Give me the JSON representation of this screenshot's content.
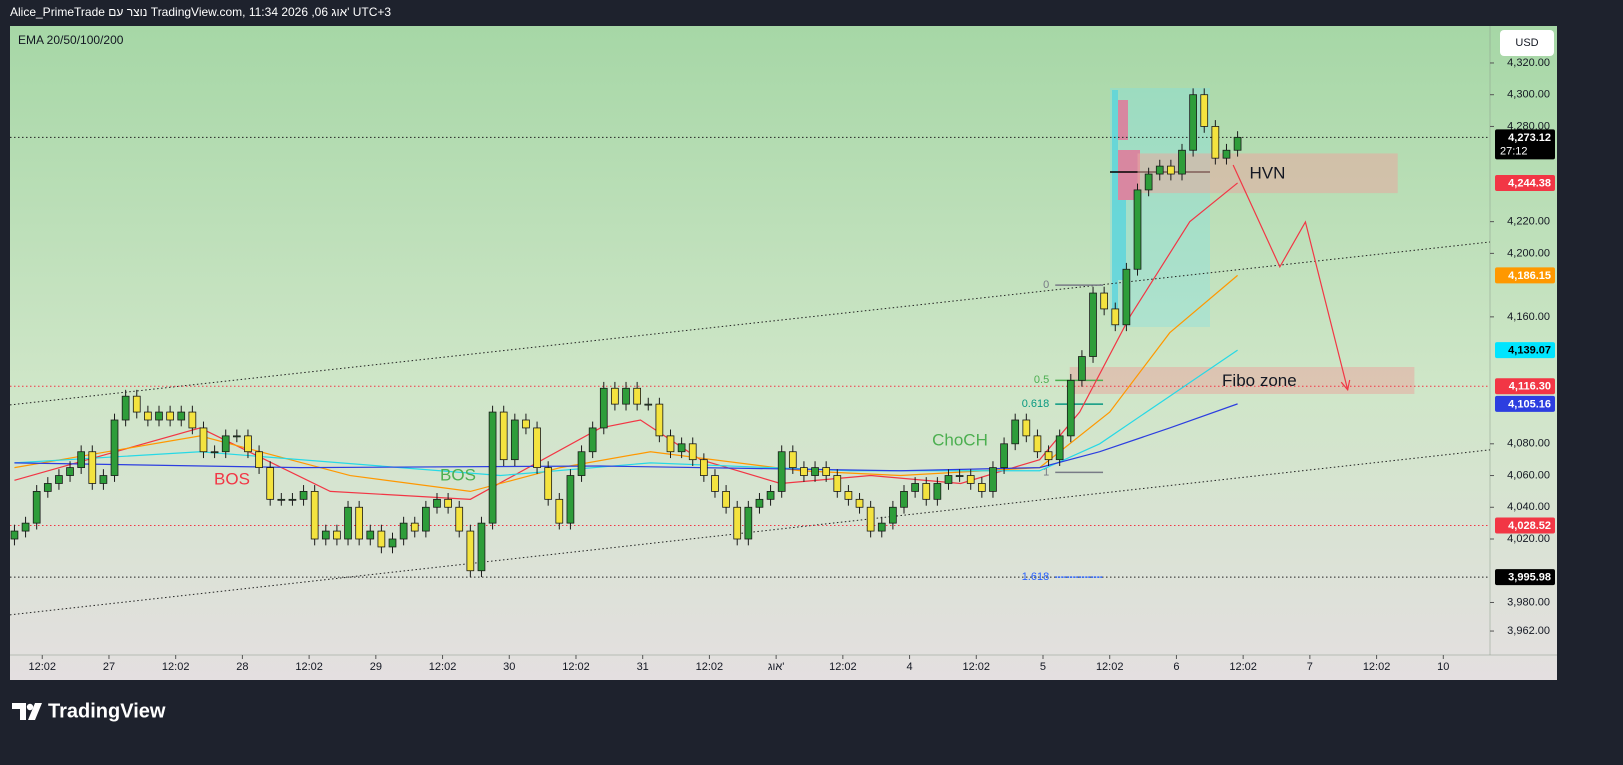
{
  "header": {
    "title": "Alice_PrimeTrade נוצר עם TradingView.com, 11:34 2026 ,06 אוג' UTC+3",
    "currency": "USD",
    "brand": "TradingView"
  },
  "chart_data": {
    "type": "candlestick",
    "indicator": "EMA 20/50/100/200",
    "open": [
      4020,
      4025,
      4030,
      4050,
      4055,
      4060,
      4065,
      4075,
      4055,
      4060,
      4095,
      4110,
      4100,
      4095,
      4100,
      4095,
      4100,
      4090,
      4075,
      4075,
      4085,
      4085,
      4075,
      4065,
      4045,
      4045,
      4045,
      4050,
      4020,
      4025,
      4020,
      4040,
      4020,
      4025,
      4015,
      4020,
      4030,
      4025,
      4040,
      4045,
      4040,
      4025,
      4000,
      4030,
      4100,
      4070,
      4095,
      4090,
      4065,
      4045,
      4030,
      4060,
      4075,
      4090,
      4115,
      4105,
      4115,
      4105,
      4105,
      4085,
      4075,
      4080,
      4070,
      4060,
      4050,
      4040,
      4020,
      4040,
      4045,
      4050,
      4075,
      4065,
      4060,
      4065,
      4060,
      4050,
      4045,
      4040,
      4025,
      4030,
      4040,
      4050,
      4055,
      4045,
      4055,
      4060,
      4060,
      4055,
      4050,
      4065,
      4080,
      4095,
      4085,
      4075,
      4070,
      4085,
      4120,
      4135,
      4175,
      4165,
      4155,
      4190,
      4240,
      4250,
      4255,
      4250,
      4265,
      4300,
      4280,
      4260,
      4265
    ],
    "high": [
      4029,
      4034,
      4054,
      4059,
      4064,
      4069,
      4079,
      4079,
      4064,
      4099,
      4114,
      4114,
      4104,
      4104,
      4104,
      4104,
      4104,
      4094,
      4079,
      4089,
      4089,
      4089,
      4079,
      4069,
      4049,
      4049,
      4054,
      4054,
      4029,
      4029,
      4044,
      4044,
      4029,
      4029,
      4024,
      4034,
      4034,
      4044,
      4049,
      4049,
      4044,
      4029,
      4034,
      4104,
      4104,
      4099,
      4099,
      4094,
      4069,
      4049,
      4064,
      4079,
      4094,
      4119,
      4119,
      4119,
      4119,
      4109,
      4109,
      4089,
      4084,
      4084,
      4074,
      4064,
      4054,
      4044,
      4044,
      4049,
      4054,
      4079,
      4079,
      4069,
      4069,
      4069,
      4064,
      4054,
      4049,
      4044,
      4034,
      4044,
      4054,
      4059,
      4059,
      4059,
      4064,
      4064,
      4064,
      4059,
      4069,
      4084,
      4099,
      4099,
      4089,
      4079,
      4089,
      4124,
      4139,
      4179,
      4179,
      4169,
      4194,
      4244,
      4254,
      4259,
      4259,
      4269,
      4304,
      4304,
      4284,
      4269,
      4277
    ],
    "low": [
      4016,
      4021,
      4026,
      4046,
      4051,
      4056,
      4061,
      4051,
      4051,
      4056,
      4091,
      4096,
      4091,
      4091,
      4091,
      4091,
      4086,
      4071,
      4071,
      4071,
      4081,
      4071,
      4061,
      4041,
      4041,
      4041,
      4041,
      4016,
      4016,
      4016,
      4016,
      4016,
      4016,
      4011,
      4011,
      4016,
      4021,
      4021,
      4036,
      4036,
      4021,
      3996,
      3996,
      4026,
      4066,
      4066,
      4086,
      4061,
      4041,
      4026,
      4026,
      4056,
      4071,
      4086,
      4101,
      4101,
      4101,
      4101,
      4081,
      4071,
      4071,
      4066,
      4056,
      4046,
      4036,
      4016,
      4016,
      4036,
      4041,
      4046,
      4061,
      4056,
      4056,
      4056,
      4046,
      4041,
      4036,
      4021,
      4021,
      4026,
      4036,
      4046,
      4041,
      4041,
      4051,
      4056,
      4051,
      4046,
      4046,
      4061,
      4076,
      4081,
      4071,
      4066,
      4066,
      4081,
      4116,
      4131,
      4161,
      4151,
      4151,
      4186,
      4236,
      4246,
      4246,
      4246,
      4261,
      4276,
      4256,
      4256,
      4261
    ],
    "close": [
      4025,
      4030,
      4050,
      4055,
      4060,
      4065,
      4075,
      4055,
      4060,
      4095,
      4110,
      4100,
      4095,
      4100,
      4095,
      4100,
      4090,
      4075,
      4075,
      4085,
      4085,
      4075,
      4065,
      4045,
      4045,
      4045,
      4050,
      4020,
      4025,
      4020,
      4040,
      4020,
      4025,
      4015,
      4020,
      4030,
      4025,
      4040,
      4045,
      4040,
      4025,
      4000,
      4030,
      4100,
      4070,
      4095,
      4090,
      4065,
      4045,
      4030,
      4060,
      4075,
      4090,
      4115,
      4105,
      4115,
      4105,
      4105,
      4085,
      4075,
      4080,
      4070,
      4060,
      4050,
      4040,
      4020,
      4040,
      4045,
      4050,
      4075,
      4065,
      4060,
      4065,
      4060,
      4050,
      4045,
      4040,
      4025,
      4030,
      4040,
      4050,
      4055,
      4045,
      4055,
      4060,
      4060,
      4055,
      4050,
      4065,
      4080,
      4095,
      4085,
      4075,
      4070,
      4085,
      4120,
      4135,
      4175,
      4165,
      4155,
      4190,
      4240,
      4250,
      4255,
      4250,
      4265,
      4300,
      4280,
      4260,
      4265,
      4273.12
    ],
    "bull_color": "#2e9d3a",
    "bear_color": "#f4e33f",
    "xlim": [
      -0.4,
      132.7
    ],
    "xticks": [
      {
        "value": 2.5,
        "label": "12:02"
      },
      {
        "value": 8.5,
        "label": "27"
      },
      {
        "value": 14.5,
        "label": "12:02"
      },
      {
        "value": 20.5,
        "label": "28"
      },
      {
        "value": 26.5,
        "label": "12:02"
      },
      {
        "value": 32.5,
        "label": "29"
      },
      {
        "value": 38.5,
        "label": "12:02"
      },
      {
        "value": 44.5,
        "label": "30"
      },
      {
        "value": 50.5,
        "label": "12:02"
      },
      {
        "value": 56.5,
        "label": "31"
      },
      {
        "value": 62.5,
        "label": "12:02"
      },
      {
        "value": 68.5,
        "label": "אוג'"
      },
      {
        "value": 74.5,
        "label": "12:02"
      },
      {
        "value": 80.5,
        "label": "4"
      },
      {
        "value": 86.5,
        "label": "12:02"
      },
      {
        "value": 92.5,
        "label": "5"
      },
      {
        "value": 98.5,
        "label": "12:02"
      },
      {
        "value": 104.5,
        "label": "6"
      },
      {
        "value": 110.5,
        "label": "12:02"
      },
      {
        "value": 116.5,
        "label": "7"
      },
      {
        "value": 122.5,
        "label": "12:02"
      },
      {
        "value": 128.5,
        "label": "10"
      }
    ],
    "ylim": [
      3946.9,
      4343.3
    ],
    "yticks": [
      {
        "value": 4320,
        "label": "4,320.00"
      },
      {
        "value": 4300,
        "label": "4,300.00"
      },
      {
        "value": 4280,
        "label": "4,280.00"
      },
      {
        "value": 4220,
        "label": "4,220.00"
      },
      {
        "value": 4200,
        "label": "4,200.00"
      },
      {
        "value": 4160,
        "label": "4,160.00"
      },
      {
        "value": 4080,
        "label": "4,080.00"
      },
      {
        "value": 4060,
        "label": "4,060.00"
      },
      {
        "value": 4040,
        "label": "4,040.00"
      },
      {
        "value": 4020,
        "label": "4,020.00"
      },
      {
        "value": 3980,
        "label": "3,980.00"
      },
      {
        "value": 3962,
        "label": "3,962.00"
      }
    ],
    "series": [
      {
        "color": "#f23645",
        "x": [
          0,
          16.7,
          28.4,
          41,
          52.7,
          56.3,
          61.7,
          68.9,
          77,
          85.1,
          92.2,
          95.8,
          100.3,
          105.7,
          110
        ],
        "values": [
          4057,
          4090,
          4050,
          4045,
          4090,
          4095,
          4070,
          4055,
          4060,
          4055,
          4070,
          4100,
          4160,
          4220,
          4244.38
        ]
      },
      {
        "color": "#ff9800",
        "x": [
          0,
          16.7,
          30.2,
          41,
          49.1,
          57.2,
          70.7,
          79.7,
          92.2,
          98.5,
          103.9,
          110
        ],
        "values": [
          4065,
          4085,
          4060,
          4050,
          4065,
          4075,
          4063,
          4060,
          4065,
          4100,
          4150,
          4186.15
        ]
      },
      {
        "color": "#26d9e6",
        "x": [
          0,
          16.7,
          34.7,
          43.7,
          57.2,
          75.2,
          92.2,
          97.6,
          103.9,
          110
        ],
        "values": [
          4068,
          4075,
          4065,
          4060,
          4068,
          4063,
          4063,
          4080,
          4110,
          4139.07
        ]
      },
      {
        "color": "#2c3ee0",
        "x": [
          0,
          25.7,
          52.7,
          79.7,
          92.2,
          97.6,
          103.9,
          110
        ],
        "values": [
          4068,
          4065,
          4066,
          4063,
          4065,
          4075,
          4090,
          4105.16
        ]
      }
    ],
    "price_tags": [
      {
        "value": 4273.12,
        "label": "4,273.12",
        "countdown": "27:12",
        "color": "#000000",
        "text_color": "#ffffff",
        "line": true
      },
      {
        "value": 4244.38,
        "label": "4,244.38",
        "color": "#f23645",
        "text_color": "#ffffff",
        "line": false
      },
      {
        "value": 4186.15,
        "label": "4,186.15",
        "color": "#ff9800",
        "text_color": "#ffffff",
        "line": false
      },
      {
        "value": 4139.07,
        "label": "4,139.07",
        "color": "#00e5ff",
        "text_color": "#000000",
        "line": false
      },
      {
        "value": 4116.3,
        "label": "4,116.30",
        "color": "#f23645",
        "text_color": "#ffffff",
        "line": true
      },
      {
        "value": 4105.16,
        "label": "4,105.16",
        "color": "#2c3ee0",
        "text_color": "#ffffff",
        "line": false
      },
      {
        "value": 4028.52,
        "label": "4,028.52",
        "color": "#f23645",
        "text_color": "#ffffff",
        "line": true
      },
      {
        "value": 3995.98,
        "label": "3,995.98",
        "color": "#000000",
        "text_color": "#ffffff",
        "line": true
      }
    ],
    "fib": [
      {
        "ratio": 0,
        "price": 4180,
        "color": "#787b86",
        "x": [
          93.6,
          97.9
        ]
      },
      {
        "ratio": 0.5,
        "price": 4120,
        "color": "#4caf50",
        "x": [
          93.6,
          97.9
        ]
      },
      {
        "ratio": 0.618,
        "price": 4105,
        "color": "#089981",
        "x": [
          93.6,
          97.9
        ]
      },
      {
        "ratio": 1,
        "price": 4062,
        "color": "#787b86",
        "x": [
          93.6,
          97.9
        ]
      },
      {
        "ratio": 1.618,
        "price": 3996,
        "color": "#2962ff",
        "x": [
          93.6,
          97.9
        ]
      }
    ],
    "zones": [
      {
        "label": "HVN",
        "top": 4263,
        "bottom": 4238,
        "x": [
          101,
          124.4
        ]
      },
      {
        "label": "Fibo zone",
        "top": 4128.4,
        "bottom": 4111.4,
        "x": [
          94.9,
          125.9
        ]
      }
    ],
    "trendlines": [
      {
        "x": [
          -0.4,
          132.7
        ],
        "values": [
          4104.5,
          4207.2
        ]
      },
      {
        "x": [
          -0.4,
          132.7
        ],
        "values": [
          3972.2,
          4076.2
        ]
      }
    ],
    "projection": {
      "x": [
        109.6,
        113.8,
        116.1,
        119.9
      ],
      "values": [
        4255.7,
        4191.5,
        4219.8,
        4114
      ]
    },
    "annotations": [
      {
        "text": "BOS",
        "color": "#f23645"
      },
      {
        "text": "BOS",
        "color": "#4caf50"
      },
      {
        "text": "ChoCH",
        "color": "#4caf50"
      }
    ]
  }
}
